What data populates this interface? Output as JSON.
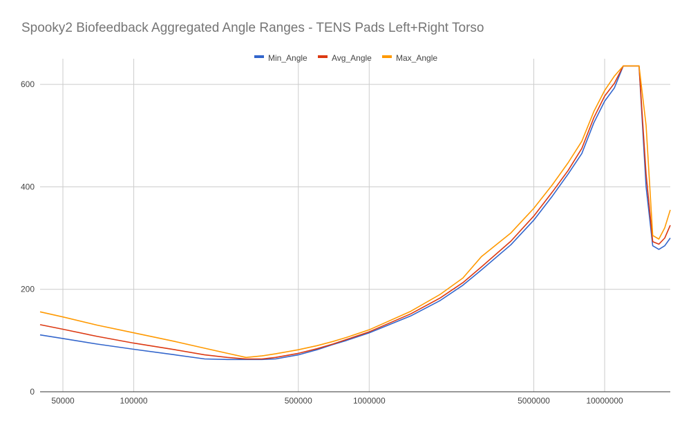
{
  "chart_data": {
    "type": "line",
    "title": "Spooky2 Biofeedback Aggregated Angle Ranges -  TENS Pads Left+Right Torso",
    "xlabel": "",
    "ylabel": "",
    "x_scale": "log",
    "xlim": [
      40000,
      19000000
    ],
    "ylim": [
      0,
      650
    ],
    "grid": true,
    "legend_position": "top",
    "x_ticks": [
      "50000",
      "100000",
      "500000",
      "1000000",
      "5000000",
      "10000000"
    ],
    "y_ticks": [
      "0",
      "200",
      "400",
      "600"
    ],
    "x": [
      40000,
      50000,
      70000,
      100000,
      150000,
      200000,
      250000,
      300000,
      350000,
      400000,
      500000,
      600000,
      700000,
      800000,
      1000000,
      1500000,
      2000000,
      2500000,
      3000000,
      4000000,
      5000000,
      6000000,
      7000000,
      8000000,
      9000000,
      10000000,
      11000000,
      12000000,
      13000000,
      14000000,
      15000000,
      16000000,
      17000000,
      18000000,
      19000000
    ],
    "series": [
      {
        "name": "Min_Angle",
        "color": "#3366cc",
        "values": [
          111,
          104,
          93,
          83,
          72,
          64,
          63,
          63,
          63,
          64,
          72,
          82,
          92,
          100,
          115,
          148,
          178,
          208,
          238,
          287,
          335,
          382,
          425,
          465,
          525,
          567,
          593,
          636,
          636,
          636,
          400,
          285,
          278,
          285,
          300
        ]
      },
      {
        "name": "Avg_Angle",
        "color": "#dc3912",
        "values": [
          131,
          122,
          108,
          95,
          82,
          72,
          67,
          64,
          64,
          67,
          75,
          84,
          93,
          102,
          117,
          152,
          183,
          213,
          244,
          294,
          343,
          390,
          432,
          475,
          535,
          577,
          602,
          636,
          636,
          636,
          425,
          293,
          288,
          300,
          325
        ]
      },
      {
        "name": "Max_Angle",
        "color": "#ff9900",
        "values": [
          156,
          146,
          130,
          115,
          98,
          85,
          75,
          67,
          70,
          74,
          82,
          90,
          98,
          106,
          121,
          157,
          190,
          222,
          264,
          310,
          358,
          404,
          447,
          489,
          547,
          588,
          616,
          636,
          636,
          636,
          520,
          305,
          298,
          320,
          355
        ]
      }
    ]
  }
}
